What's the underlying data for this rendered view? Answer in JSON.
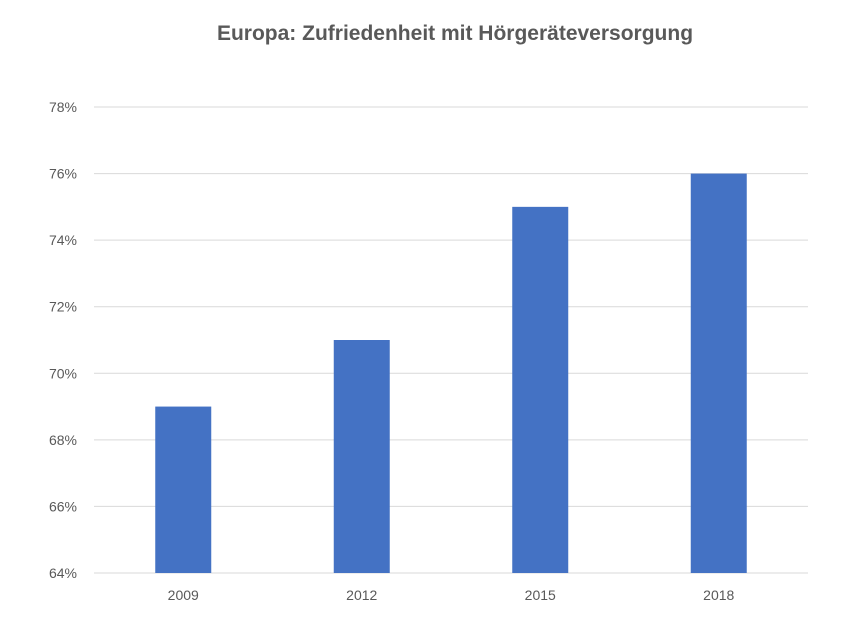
{
  "chart_data": {
    "type": "bar",
    "title": "Europa: Zufriedenheit mit Hörgeräteversorgung",
    "xlabel": "",
    "ylabel": "",
    "categories": [
      "2009",
      "2012",
      "2015",
      "2018"
    ],
    "values": [
      69,
      71,
      75,
      76
    ],
    "ylim": [
      64,
      78
    ],
    "yticks": [
      64,
      66,
      68,
      70,
      72,
      74,
      76,
      78
    ],
    "ytick_labels": [
      "64%",
      "66%",
      "68%",
      "70%",
      "72%",
      "74%",
      "76%",
      "78%"
    ],
    "grid": true,
    "legend": "none",
    "colors": {
      "bar": "#4472c4",
      "text": "#595959",
      "grid": "#d9d9d9"
    }
  }
}
